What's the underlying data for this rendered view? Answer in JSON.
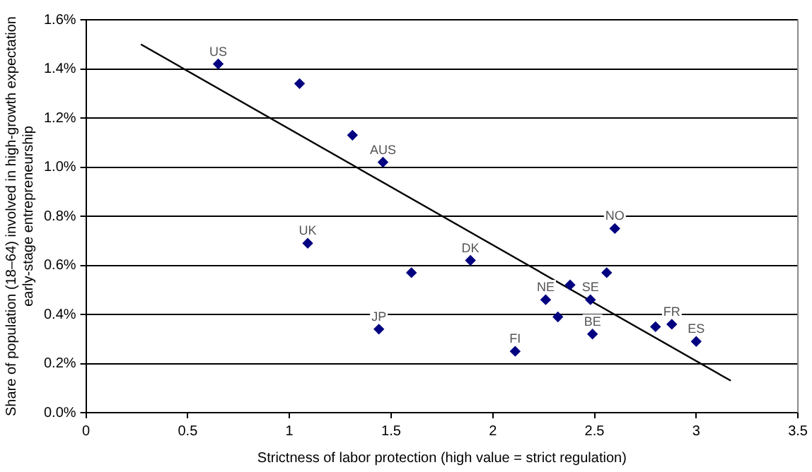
{
  "chart_data": {
    "type": "scatter",
    "xlabel": "Strictness of labor protection (high value = strict regulation)",
    "ylabel": "Share of population (18–64) involved in high-growth expectation early-stage entrepreneurship",
    "xlim": [
      0,
      3.5
    ],
    "xticks": [
      0,
      0.5,
      1,
      1.5,
      2,
      2.5,
      3,
      3.5
    ],
    "ylim": [
      0,
      1.6
    ],
    "yticks": [
      {
        "value": 0,
        "label": "0.0%"
      },
      {
        "value": 0.2,
        "label": "0.2%"
      },
      {
        "value": 0.4,
        "label": "0.4%"
      },
      {
        "value": 0.6,
        "label": "0.6%"
      },
      {
        "value": 0.8,
        "label": "0.8%"
      },
      {
        "value": 1.0,
        "label": "1.0%"
      },
      {
        "value": 1.2,
        "label": "1.2%"
      },
      {
        "value": 1.4,
        "label": "1.4%"
      },
      {
        "value": 1.6,
        "label": "1.6%"
      }
    ],
    "grid": "y",
    "legend": false,
    "marker": "diamond",
    "series": [
      {
        "color": "#000080",
        "x": [
          0.65,
          1.05,
          1.31,
          1.46,
          1.09,
          1.44,
          1.6,
          1.89,
          2.26,
          2.38,
          2.48,
          2.32,
          2.6,
          2.56,
          2.49,
          2.11,
          2.8,
          2.88,
          3.0
        ],
        "values": [
          1.42,
          1.34,
          1.13,
          1.02,
          0.69,
          0.34,
          0.57,
          0.62,
          0.46,
          0.52,
          0.46,
          0.39,
          0.75,
          0.57,
          0.32,
          0.25,
          0.35,
          0.36,
          0.29
        ]
      },
      {
        "type": "line",
        "color": "#000000",
        "marker": "none",
        "x": [
          0.27,
          3.17
        ],
        "values": [
          1.5,
          0.13
        ]
      }
    ],
    "annotations": [
      {
        "text": "US",
        "x": 0.65,
        "y": 1.42
      },
      {
        "text": "AUS",
        "x": 1.46,
        "y": 1.02
      },
      {
        "text": "UK",
        "x": 1.09,
        "y": 0.69
      },
      {
        "text": "JP",
        "x": 1.44,
        "y": 0.34
      },
      {
        "text": "DK",
        "x": 1.89,
        "y": 0.62
      },
      {
        "text": "NO",
        "x": 2.6,
        "y": 0.75
      },
      {
        "text": "NE",
        "x": 2.26,
        "y": 0.46
      },
      {
        "text": "SE",
        "x": 2.48,
        "y": 0.46
      },
      {
        "text": "FR",
        "x": 2.88,
        "y": 0.36
      },
      {
        "text": "ES",
        "x": 3.0,
        "y": 0.29
      },
      {
        "text": "BE",
        "x": 2.49,
        "y": 0.32
      },
      {
        "text": "FI",
        "x": 2.11,
        "y": 0.25
      }
    ]
  }
}
